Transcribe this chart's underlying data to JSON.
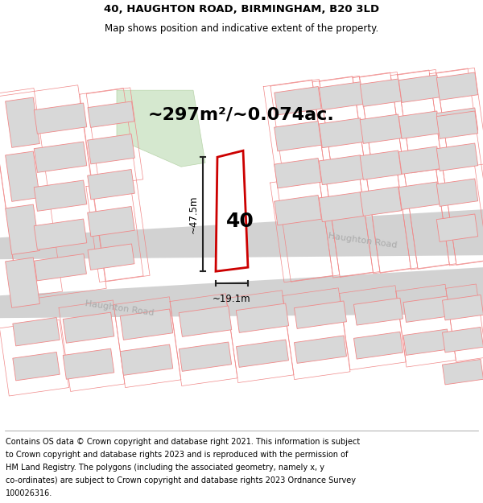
{
  "title_line1": "40, HAUGHTON ROAD, BIRMINGHAM, B20 3LD",
  "title_line2": "Map shows position and indicative extent of the property.",
  "area_text": "~297m²/~0.074ac.",
  "dim_width": "~19.1m",
  "dim_height": "~47.5m",
  "label_number": "40",
  "road_label1": "Haughton Road",
  "road_label2": "Haughton Road",
  "footer_lines": [
    "Contains OS data © Crown copyright and database right 2021. This information is subject",
    "to Crown copyright and database rights 2023 and is reproduced with the permission of",
    "HM Land Registry. The polygons (including the associated geometry, namely x, y",
    "co-ordinates) are subject to Crown copyright and database rights 2023 Ordnance Survey",
    "100026316."
  ],
  "map_bg": "#ebebeb",
  "road_fill": "#d2d2d2",
  "bld_fill": "#d8d8d8",
  "bld_outline": "#f08888",
  "green_fill": "#d5e8cf",
  "prop_outline": "#cc0000",
  "prop_fill": "#ffffff",
  "dim_color": "#222222",
  "road_text_color": "#aaaaaa",
  "title_fontsize": 9.5,
  "subtitle_fontsize": 8.5,
  "area_fontsize": 16,
  "number_fontsize": 18,
  "dim_fontsize": 8.5,
  "road_fontsize": 8,
  "footer_fontsize": 7
}
